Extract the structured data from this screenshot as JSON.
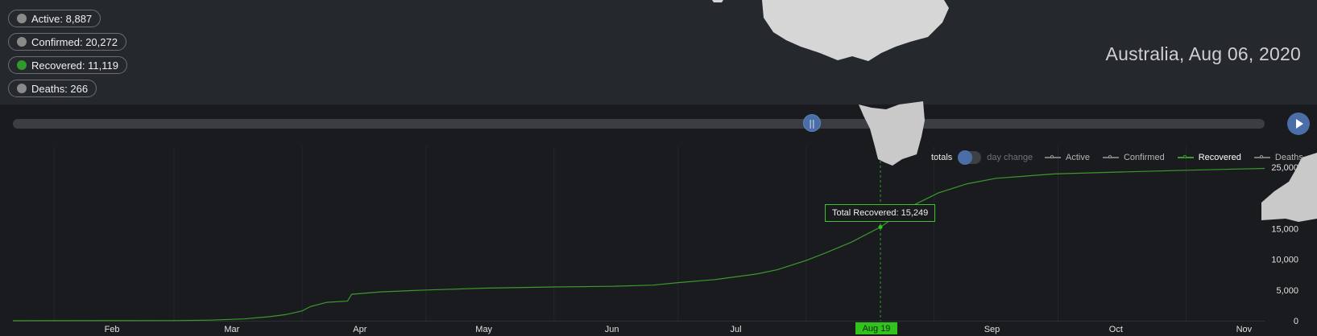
{
  "stats": [
    {
      "label": "Active: 8,887",
      "selected": false
    },
    {
      "label": "Confirmed: 20,272",
      "selected": false
    },
    {
      "label": "Recovered: 11,119",
      "selected": true
    },
    {
      "label": "Deaths: 266",
      "selected": false
    }
  ],
  "location_title": "Australia, Aug 06, 2020",
  "toggle": {
    "on_label": "totals",
    "off_label": "day change"
  },
  "legend": [
    "Active",
    "Confirmed",
    "Recovered",
    "Deaths"
  ],
  "tooltip": "Total Recovered: 15,249",
  "date_marker": "Aug 19",
  "timeline_position": 0.66,
  "colors": {
    "recovered": "#3a9a2c",
    "accent": "#4b6ea8",
    "marker": "#31c21c"
  },
  "chart_data": {
    "type": "line",
    "title": "",
    "xlabel": "",
    "ylabel": "",
    "x_tick_labels": [
      "Feb",
      "Mar",
      "Apr",
      "May",
      "Jun",
      "Jul",
      "Aug 19",
      "Sep",
      "Oct",
      "Nov"
    ],
    "y_tick_labels": [
      "0",
      "5,000",
      "10,000",
      "15,000",
      "20,000",
      "25,000"
    ],
    "ylim": [
      0,
      25000
    ],
    "grid": true,
    "legend_position": "top-right",
    "series": [
      {
        "name": "Recovered",
        "x": [
          "2020-01-22",
          "2020-02-15",
          "2020-03-01",
          "2020-03-10",
          "2020-03-18",
          "2020-03-24",
          "2020-03-28",
          "2020-04-01",
          "2020-04-03",
          "2020-04-07",
          "2020-04-12",
          "2020-04-13",
          "2020-04-20",
          "2020-05-01",
          "2020-05-15",
          "2020-06-01",
          "2020-06-15",
          "2020-06-25",
          "2020-07-01",
          "2020-07-10",
          "2020-07-20",
          "2020-07-25",
          "2020-08-01",
          "2020-08-06",
          "2020-08-12",
          "2020-08-19",
          "2020-08-26",
          "2020-09-02",
          "2020-09-09",
          "2020-09-16",
          "2020-09-30",
          "2020-10-15",
          "2020-11-01",
          "2020-11-20"
        ],
        "values": [
          0,
          15,
          30,
          100,
          300,
          650,
          1000,
          1600,
          2300,
          3000,
          3200,
          4300,
          4700,
          5000,
          5300,
          5500,
          5600,
          5800,
          6200,
          6700,
          7600,
          8300,
          9800,
          11119,
          12800,
          15249,
          18500,
          20800,
          22300,
          23200,
          23900,
          24200,
          24500,
          24800
        ]
      }
    ]
  }
}
